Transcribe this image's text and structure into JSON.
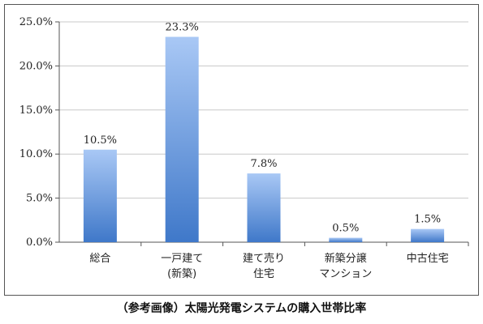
{
  "caption": "（参考画像）太陽光発電システムの購入世帯比率",
  "colors": {
    "bar_top": "#a9c8f5",
    "bar_bottom": "#3f78c9",
    "axis": "#555555",
    "frame": "#555555",
    "grid": "#c8c8c8"
  },
  "chart_data": {
    "type": "bar",
    "title": "",
    "xlabel": "",
    "ylabel": "",
    "ylim": [
      0,
      25
    ],
    "y_ticks": [
      "0.0%",
      "5.0%",
      "10.0%",
      "15.0%",
      "20.0%",
      "25.0%"
    ],
    "y_tick_values": [
      0,
      5,
      10,
      15,
      20,
      25
    ],
    "grid": true,
    "categories": [
      [
        "総合"
      ],
      [
        "一戸建て",
        "(新築)"
      ],
      [
        "建て売り",
        "住宅"
      ],
      [
        "新築分譲",
        "マンション"
      ],
      [
        "中古住宅"
      ]
    ],
    "values": [
      10.5,
      23.3,
      7.8,
      0.5,
      1.5
    ],
    "data_labels": [
      "10.5%",
      "23.3%",
      "7.8%",
      "0.5%",
      "1.5%"
    ]
  }
}
